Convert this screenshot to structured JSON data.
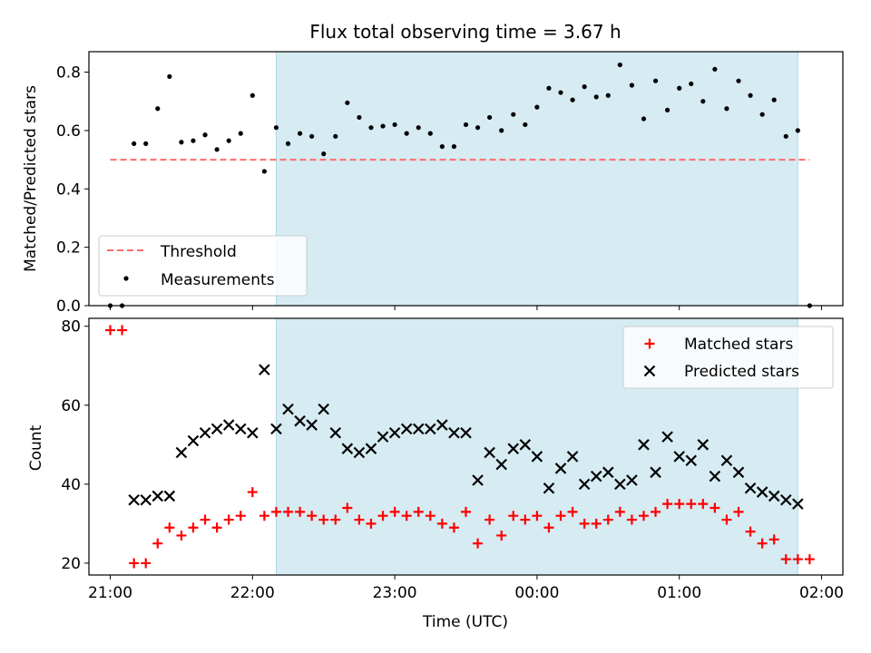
{
  "figure": {
    "title": "Flux total observing time = 3.67 h"
  },
  "colors": {
    "shade": "#add8e6",
    "threshold": "#ff6b6b",
    "matched": "#ff0000",
    "predicted": "#000000",
    "measurement": "#000000"
  },
  "chart_data": [
    {
      "type": "scatter",
      "panel": "top",
      "ylabel": "Matched/Predicted stars",
      "xlim": [
        "20:51",
        "02:09"
      ],
      "ylim": [
        0,
        0.87
      ],
      "yticks": [
        0.0,
        0.2,
        0.4,
        0.6,
        0.8
      ],
      "ytick_labels": [
        "0.0",
        "0.2",
        "0.4",
        "0.6",
        "0.8"
      ],
      "xticks": [
        "21:00",
        "22:00",
        "23:00",
        "00:00",
        "01:00",
        "02:00"
      ],
      "shaded_interval": [
        "22:10",
        "01:50"
      ],
      "legend_position": "lower-left",
      "threshold": {
        "name": "Threshold",
        "style": "dashed",
        "y": 0.5,
        "x": [
          "21:00",
          "01:55"
        ]
      },
      "series": [
        {
          "name": "Measurements",
          "marker": "dot",
          "x": [
            "21:00",
            "21:05",
            "21:10",
            "21:15",
            "21:20",
            "21:25",
            "21:30",
            "21:35",
            "21:40",
            "21:45",
            "21:50",
            "21:55",
            "22:00",
            "22:05",
            "22:10",
            "22:15",
            "22:20",
            "22:25",
            "22:30",
            "22:35",
            "22:40",
            "22:45",
            "22:50",
            "22:55",
            "23:00",
            "23:05",
            "23:10",
            "23:15",
            "23:20",
            "23:25",
            "23:30",
            "23:35",
            "23:40",
            "23:45",
            "23:50",
            "23:55",
            "00:00",
            "00:05",
            "00:10",
            "00:15",
            "00:20",
            "00:25",
            "00:30",
            "00:35",
            "00:40",
            "00:45",
            "00:50",
            "00:55",
            "01:00",
            "01:05",
            "01:10",
            "01:15",
            "01:20",
            "01:25",
            "01:30",
            "01:35",
            "01:40",
            "01:45",
            "01:50",
            "01:55"
          ],
          "y": [
            0.0,
            0.0,
            0.555,
            0.555,
            0.675,
            0.785,
            0.56,
            0.565,
            0.585,
            0.535,
            0.565,
            0.59,
            0.72,
            0.46,
            0.61,
            0.555,
            0.59,
            0.58,
            0.52,
            0.58,
            0.695,
            0.645,
            0.61,
            0.615,
            0.62,
            0.59,
            0.61,
            0.59,
            0.545,
            0.545,
            0.62,
            0.61,
            0.645,
            0.6,
            0.655,
            0.62,
            0.68,
            0.745,
            0.73,
            0.705,
            0.75,
            0.715,
            0.72,
            0.825,
            0.755,
            0.64,
            0.77,
            0.67,
            0.745,
            0.76,
            0.7,
            0.81,
            0.675,
            0.77,
            0.72,
            0.655,
            0.705,
            0.58,
            0.6,
            0.0
          ]
        }
      ]
    },
    {
      "type": "scatter",
      "panel": "bottom",
      "xlabel": "Time (UTC)",
      "ylabel": "Count",
      "xlim": [
        "20:51",
        "02:09"
      ],
      "ylim": [
        17,
        82
      ],
      "yticks": [
        20,
        40,
        60,
        80
      ],
      "ytick_labels": [
        "20",
        "40",
        "60",
        "80"
      ],
      "xticks": [
        "21:00",
        "22:00",
        "23:00",
        "00:00",
        "01:00",
        "02:00"
      ],
      "xtick_labels": [
        "21:00",
        "22:00",
        "23:00",
        "00:00",
        "01:00",
        "02:00"
      ],
      "shaded_interval": [
        "22:10",
        "01:50"
      ],
      "legend_position": "top-right",
      "series": [
        {
          "name": "Matched stars",
          "marker": "plus",
          "x": [
            "21:00",
            "21:05",
            "21:10",
            "21:15",
            "21:20",
            "21:25",
            "21:30",
            "21:35",
            "21:40",
            "21:45",
            "21:50",
            "21:55",
            "22:00",
            "22:05",
            "22:10",
            "22:15",
            "22:20",
            "22:25",
            "22:30",
            "22:35",
            "22:40",
            "22:45",
            "22:50",
            "22:55",
            "23:00",
            "23:05",
            "23:10",
            "23:15",
            "23:20",
            "23:25",
            "23:30",
            "23:35",
            "23:40",
            "23:45",
            "23:50",
            "23:55",
            "00:00",
            "00:05",
            "00:10",
            "00:15",
            "00:20",
            "00:25",
            "00:30",
            "00:35",
            "00:40",
            "00:45",
            "00:50",
            "00:55",
            "01:00",
            "01:05",
            "01:10",
            "01:15",
            "01:20",
            "01:25",
            "01:30",
            "01:35",
            "01:40",
            "01:45",
            "01:50",
            "01:55"
          ],
          "y": [
            79,
            79,
            20,
            20,
            25,
            29,
            27,
            29,
            31,
            29,
            31,
            32,
            38,
            32,
            33,
            33,
            33,
            32,
            31,
            31,
            34,
            31,
            30,
            32,
            33,
            32,
            33,
            32,
            30,
            29,
            33,
            25,
            31,
            27,
            32,
            31,
            32,
            29,
            32,
            33,
            30,
            30,
            31,
            33,
            31,
            32,
            33,
            35,
            35,
            35,
            35,
            34,
            31,
            33,
            28,
            25,
            26,
            21,
            21,
            21
          ]
        },
        {
          "name": "Predicted stars",
          "marker": "x",
          "x": [
            "21:10",
            "21:15",
            "21:20",
            "21:25",
            "21:30",
            "21:35",
            "21:40",
            "21:45",
            "21:50",
            "21:55",
            "22:00",
            "22:05",
            "22:10",
            "22:15",
            "22:20",
            "22:25",
            "22:30",
            "22:35",
            "22:40",
            "22:45",
            "22:50",
            "22:55",
            "23:00",
            "23:05",
            "23:10",
            "23:15",
            "23:20",
            "23:25",
            "23:30",
            "23:35",
            "23:40",
            "23:45",
            "23:50",
            "23:55",
            "00:00",
            "00:05",
            "00:10",
            "00:15",
            "00:20",
            "00:25",
            "00:30",
            "00:35",
            "00:40",
            "00:45",
            "00:50",
            "00:55",
            "01:00",
            "01:05",
            "01:10",
            "01:15",
            "01:20",
            "01:25",
            "01:30",
            "01:35",
            "01:40",
            "01:45",
            "01:50"
          ],
          "y": [
            36,
            36,
            37,
            37,
            48,
            51,
            53,
            54,
            55,
            54,
            53,
            69,
            54,
            59,
            56,
            55,
            59,
            53,
            49,
            48,
            49,
            52,
            53,
            54,
            54,
            54,
            55,
            53,
            53,
            41,
            48,
            45,
            49,
            50,
            47,
            39,
            44,
            47,
            40,
            42,
            43,
            40,
            41,
            50,
            43,
            52,
            47,
            46,
            50,
            42,
            46,
            43,
            39,
            38,
            37,
            36,
            35
          ]
        }
      ]
    }
  ]
}
